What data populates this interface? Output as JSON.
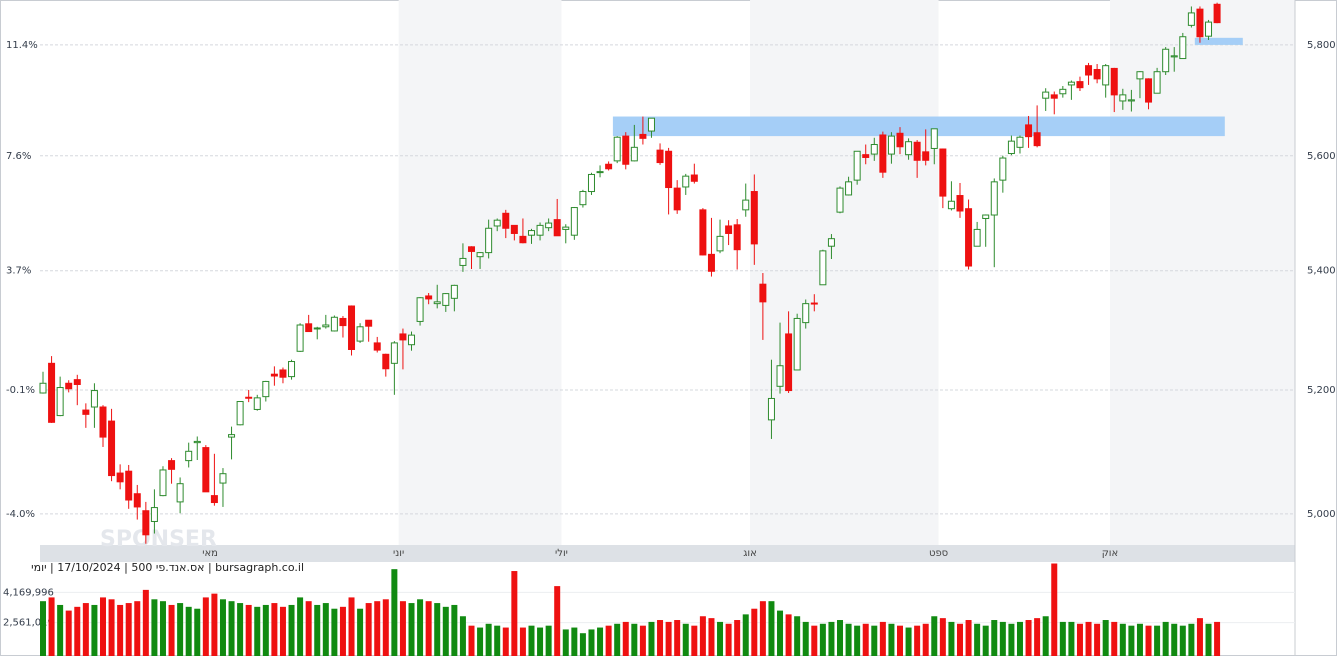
{
  "chart_data": {
    "type": "candlestick",
    "log_scale": true,
    "grid": true,
    "ylim": [
      4951,
      5883
    ],
    "yticks": [
      {
        "value": 5000,
        "label": "5,000"
      },
      {
        "value": 5200,
        "label": "5,200"
      },
      {
        "value": 5400,
        "label": "5,400"
      },
      {
        "value": 5600,
        "label": "5,600"
      },
      {
        "value": 5800,
        "label": "5,800"
      }
    ],
    "yticks_left": [
      {
        "value": 5000,
        "label": "-4.0%"
      },
      {
        "value": 5200,
        "label": "-0.1%"
      },
      {
        "value": 5400,
        "label": "3.7%"
      },
      {
        "value": 5600,
        "label": "7.6%"
      },
      {
        "value": 5800,
        "label": "11.4%"
      }
    ],
    "months": [
      "מאי",
      "יוני",
      "יולי",
      "אוג",
      "ספט",
      "אוק"
    ],
    "up_color": "#2e8b2e",
    "down_color": "#ee1111",
    "series": {
      "open": [
        5195,
        5244,
        5158,
        5211,
        5217,
        5167,
        5172,
        5172,
        5149,
        5065,
        5068,
        5032,
        5005,
        4988,
        5029,
        5085,
        5019,
        5085,
        5114,
        5106,
        5029,
        5049,
        5123,
        5143,
        5188,
        5168,
        5189,
        5226,
        5233,
        5222,
        5264,
        5310,
        5303,
        5305,
        5298,
        5319,
        5340,
        5281,
        5316,
        5278,
        5259,
        5244,
        5293,
        5275,
        5314,
        5357,
        5344,
        5341,
        5353,
        5409,
        5441,
        5424,
        5431,
        5477,
        5499,
        5478,
        5459,
        5461,
        5461,
        5474,
        5488,
        5471,
        5461,
        5514,
        5537,
        5572,
        5585,
        5591,
        5635,
        5591,
        5638,
        5644,
        5610,
        5608,
        5543,
        5545,
        5566,
        5505,
        5428,
        5434,
        5477,
        5479,
        5505,
        5537,
        5377,
        5151,
        5206,
        5293,
        5233,
        5312,
        5345,
        5376,
        5442,
        5501,
        5531,
        5557,
        5602,
        5603,
        5637,
        5603,
        5640,
        5602,
        5624,
        5607,
        5613,
        5612,
        5507,
        5530,
        5507,
        5442,
        5490,
        5496,
        5557,
        5604,
        5615,
        5655,
        5641,
        5703,
        5709,
        5711,
        5727,
        5733,
        5762,
        5755,
        5727,
        5757,
        5698,
        5698,
        5738,
        5738,
        5712,
        5751,
        5778,
        5775,
        5836,
        5866,
        5816,
        5875
      ],
      "high": [
        5230,
        5256,
        5222,
        5216,
        5225,
        5178,
        5211,
        5175,
        5169,
        5079,
        5078,
        5046,
        5019,
        5039,
        5076,
        5089,
        5058,
        5114,
        5124,
        5110,
        5096,
        5073,
        5140,
        5181,
        5200,
        5192,
        5215,
        5239,
        5237,
        5250,
        5311,
        5325,
        5305,
        5325,
        5324,
        5323,
        5341,
        5311,
        5316,
        5288,
        5260,
        5281,
        5302,
        5297,
        5355,
        5362,
        5376,
        5362,
        5376,
        5447,
        5442,
        5432,
        5488,
        5490,
        5505,
        5478,
        5490,
        5472,
        5483,
        5490,
        5524,
        5480,
        5510,
        5540,
        5570,
        5583,
        5590,
        5635,
        5642,
        5655,
        5670,
        5667,
        5622,
        5614,
        5557,
        5568,
        5586,
        5508,
        5491,
        5488,
        5487,
        5489,
        5551,
        5567,
        5396,
        5250,
        5312,
        5331,
        5327,
        5351,
        5360,
        5436,
        5463,
        5546,
        5563,
        5608,
        5620,
        5632,
        5643,
        5642,
        5651,
        5631,
        5628,
        5647,
        5648,
        5613,
        5555,
        5552,
        5523,
        5484,
        5497,
        5560,
        5600,
        5636,
        5636,
        5671,
        5690,
        5721,
        5715,
        5725,
        5735,
        5742,
        5767,
        5765,
        5765,
        5758,
        5720,
        5718,
        5752,
        5739,
        5758,
        5796,
        5796,
        5822,
        5871,
        5871,
        5846,
        5878
      ],
      "low": [
        5194,
        5146,
        5157,
        5196,
        5175,
        5138,
        5138,
        5107,
        5052,
        5039,
        5008,
        4991,
        4953,
        4969,
        5028,
        5048,
        5001,
        5074,
        5086,
        5036,
        5013,
        5011,
        5087,
        5142,
        5180,
        5166,
        5181,
        5207,
        5211,
        5217,
        5263,
        5297,
        5284,
        5302,
        5297,
        5287,
        5257,
        5278,
        5280,
        5262,
        5222,
        5192,
        5234,
        5265,
        5307,
        5343,
        5336,
        5330,
        5331,
        5398,
        5403,
        5403,
        5421,
        5468,
        5456,
        5452,
        5447,
        5446,
        5452,
        5468,
        5460,
        5447,
        5453,
        5509,
        5531,
        5562,
        5574,
        5587,
        5576,
        5590,
        5620,
        5632,
        5584,
        5497,
        5498,
        5531,
        5551,
        5426,
        5390,
        5430,
        5444,
        5402,
        5493,
        5410,
        5283,
        5120,
        5194,
        5195,
        5233,
        5302,
        5331,
        5376,
        5420,
        5499,
        5530,
        5549,
        5585,
        5591,
        5561,
        5586,
        5603,
        5593,
        5561,
        5583,
        5585,
        5508,
        5504,
        5491,
        5402,
        5442,
        5441,
        5406,
        5535,
        5601,
        5604,
        5614,
        5615,
        5680,
        5674,
        5704,
        5700,
        5716,
        5727,
        5730,
        5704,
        5678,
        5682,
        5679,
        5703,
        5683,
        5712,
        5745,
        5751,
        5775,
        5832,
        5804,
        5809,
        5840
      ],
      "close": [
        5211,
        5147,
        5204,
        5202,
        5209,
        5160,
        5199,
        5123,
        5061,
        5051,
        5022,
        5011,
        4967,
        5010,
        5070,
        5071,
        5048,
        5100,
        5116,
        5035,
        5018,
        5064,
        5127,
        5181,
        5187,
        5187,
        5214,
        5223,
        5221,
        5247,
        5308,
        5297,
        5303,
        5308,
        5321,
        5307,
        5267,
        5305,
        5306,
        5266,
        5235,
        5278,
        5283,
        5291,
        5354,
        5352,
        5347,
        5361,
        5375,
        5421,
        5433,
        5431,
        5473,
        5487,
        5473,
        5464,
        5448,
        5469,
        5478,
        5482,
        5460,
        5475,
        5509,
        5537,
        5567,
        5572,
        5577,
        5633,
        5585,
        5615,
        5631,
        5667,
        5588,
        5544,
        5505,
        5564,
        5555,
        5427,
        5399,
        5459,
        5464,
        5436,
        5522,
        5446,
        5347,
        5186,
        5240,
        5199,
        5319,
        5344,
        5344,
        5434,
        5455,
        5543,
        5554,
        5608,
        5597,
        5620,
        5571,
        5635,
        5616,
        5625,
        5592,
        5592,
        5648,
        5529,
        5520,
        5503,
        5408,
        5471,
        5496,
        5554,
        5596,
        5626,
        5633,
        5634,
        5618,
        5714,
        5703,
        5719,
        5732,
        5722,
        5745,
        5738,
        5762,
        5709,
        5709,
        5700,
        5751,
        5696,
        5751,
        5792,
        5780,
        5815,
        5859,
        5815,
        5842,
        5841
      ]
    },
    "zones": [
      {
        "low": 5635,
        "high": 5670
      },
      {
        "low": 5800,
        "high": 5813
      }
    ],
    "zone_color": "#9ccaf6",
    "volume": {
      "ylim": [
        790000,
        5780000
      ],
      "yticks": [
        {
          "value": 4169996,
          "label": "4,169,996"
        },
        {
          "value": 2561019,
          "label": "2,561,019"
        }
      ],
      "values": [
        3700000,
        3900000,
        3500000,
        3200000,
        3400000,
        3600000,
        3500000,
        3900000,
        3800000,
        3500000,
        3600000,
        3700000,
        4300000,
        3800000,
        3700000,
        3500000,
        3600000,
        3400000,
        3300000,
        3900000,
        4100000,
        3800000,
        3700000,
        3600000,
        3500000,
        3400000,
        3500000,
        3600000,
        3400000,
        3500000,
        3900000,
        3700000,
        3500000,
        3600000,
        3300000,
        3400000,
        3900000,
        3300000,
        3600000,
        3700000,
        3800000,
        5400000,
        3700000,
        3600000,
        3800000,
        3700000,
        3600000,
        3400000,
        3500000,
        2900000,
        2400000,
        2300000,
        2500000,
        2400000,
        2300000,
        5300000,
        2300000,
        2400000,
        2300000,
        2400000,
        4500000,
        2200000,
        2300000,
        2000000,
        2200000,
        2300000,
        2400000,
        2500000,
        2600000,
        2500000,
        2400000,
        2600000,
        2700000,
        2600000,
        2700000,
        2500000,
        2400000,
        2900000,
        2800000,
        2600000,
        2500000,
        2700000,
        3000000,
        3300000,
        3700000,
        3700000,
        3200000,
        3000000,
        2900000,
        2600000,
        2400000,
        2500000,
        2600000,
        2700000,
        2500000,
        2400000,
        2500000,
        2400000,
        2600000,
        2500000,
        2400000,
        2300000,
        2400000,
        2500000,
        2900000,
        2800000,
        2600000,
        2500000,
        2700000,
        2500000,
        2400000,
        2700000,
        2600000,
        2500000,
        2600000,
        2700000,
        2800000,
        2900000,
        5700000,
        2600000,
        2600000,
        2500000,
        2600000,
        2500000,
        2700000,
        2600000,
        2500000,
        2400000,
        2500000,
        2400000,
        2400000,
        2600000,
        2500000,
        2400000,
        2500000,
        2800000,
        2500000,
        2600000
      ]
    },
    "caption": "bursagraph.co.il | אס.אנד.פי 500 | 17/10/2024 | יומי",
    "watermark": "SPONSER"
  }
}
